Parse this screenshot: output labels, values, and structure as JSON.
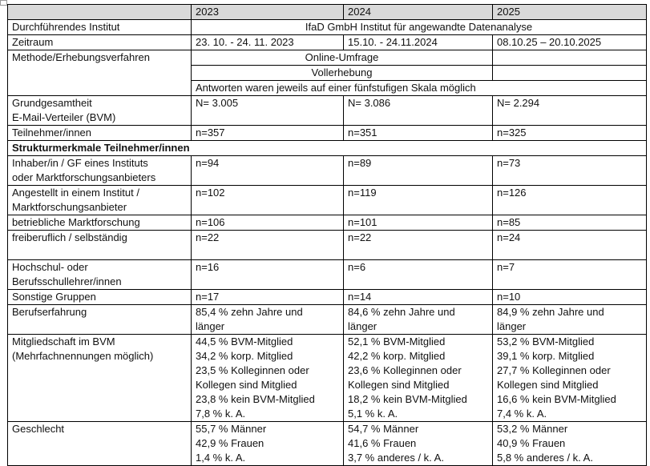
{
  "header": {
    "years": [
      "2023",
      "2024",
      "2025"
    ]
  },
  "rows": {
    "institut": {
      "label": "Durchführendes Institut",
      "value": "IfaD GmbH Institut für angewandte Datenanalyse"
    },
    "zeitraum": {
      "label": "Zeitraum",
      "values": [
        "23. 10. - 24. 11. 2023",
        "15.10. - 24.11.2024",
        "08.10.25 – 20.10.2025"
      ]
    },
    "methode": {
      "label": "Methode/Erhebungsverfahren",
      "online": "Online-Umfrage",
      "voll": "Vollerhebung",
      "skala": "Antworten waren jeweils auf einer fünfstufigen Skala möglich"
    },
    "grund": {
      "label1": "Grundgesamtheit",
      "label2": "E-Mail-Verteiler (BVM)",
      "values": [
        "N= 3.005",
        "N= 3.086",
        "N= 2.294"
      ]
    },
    "teilnehmer": {
      "label": "Teilnehmer/innen",
      "values": [
        "n=357",
        "n=351",
        "n=325"
      ]
    },
    "struktur": {
      "label": "Strukturmerkmale Teilnehmer/innen"
    },
    "inhaber": {
      "label1": "Inhaber/in / GF eines Instituts",
      "label2": "oder Marktforschungsanbieters",
      "values": [
        "n=94",
        "n=89",
        "n=73"
      ]
    },
    "angestellt": {
      "label1": "Angestellt in einem Institut /",
      "label2": "Marktforschungsanbieter",
      "values": [
        "n=102",
        "n=119",
        "n=126"
      ]
    },
    "betrieblich": {
      "label": "betriebliche Marktforschung",
      "values": [
        "n=106",
        "n=101",
        "n=85"
      ]
    },
    "frei": {
      "label": "freiberuflich / selbständig",
      "values": [
        "n=22",
        "n=22",
        "n=24"
      ]
    },
    "hochschul": {
      "label1": "Hochschul- oder",
      "label2": "Berufsschullehrer/innen",
      "values": [
        "n=16",
        "n=6",
        "n=7"
      ]
    },
    "sonstige": {
      "label": "Sonstige Gruppen",
      "values": [
        "n=17",
        "n=14",
        "n=10"
      ]
    },
    "beruf": {
      "label": "Berufserfahrung",
      "values": [
        [
          "85,4 % zehn Jahre und",
          "länger"
        ],
        [
          "84,6 % zehn Jahre und",
          "länger"
        ],
        [
          "84,9 % zehn Jahre und",
          "länger"
        ]
      ]
    },
    "mitglied": {
      "label1": "Mitgliedschaft im BVM",
      "label2": "(Mehrfachnennungen möglich)",
      "values": [
        [
          "44,5 % BVM-Mitglied",
          "34,2 % korp. Mitglied",
          "23,5 % Kolleginnen oder",
          "Kollegen sind Mitglied",
          "23,8 % kein BVM-Mitglied",
          "7,8 % k. A."
        ],
        [
          "52,1 % BVM-Mitglied",
          "42,2 % korp. Mitglied",
          "23,6 % Kolleginnen oder",
          "Kollegen sind Mitglied",
          "18,2 % kein BVM-Mitglied",
          "5,1 % k. A."
        ],
        [
          "53,2 % BVM-Mitglied",
          "39,1 % korp. Mitglied",
          "27,7 % Kolleginnen oder",
          "Kollegen sind Mitglied",
          "16,6 % kein BVM-Mitglied",
          "7,4 % k. A."
        ]
      ]
    },
    "geschlecht": {
      "label": "Geschlecht",
      "values": [
        [
          "55,7 % Männer",
          "42,9 % Frauen",
          "1,4 % k. A."
        ],
        [
          "54,7 % Männer",
          "41,6 % Frauen",
          "3,7 % anderes / k. A."
        ],
        [
          "53,2 % Männer",
          "40,9 % Frauen",
          "5,8 % anderes / k. A."
        ]
      ]
    }
  }
}
